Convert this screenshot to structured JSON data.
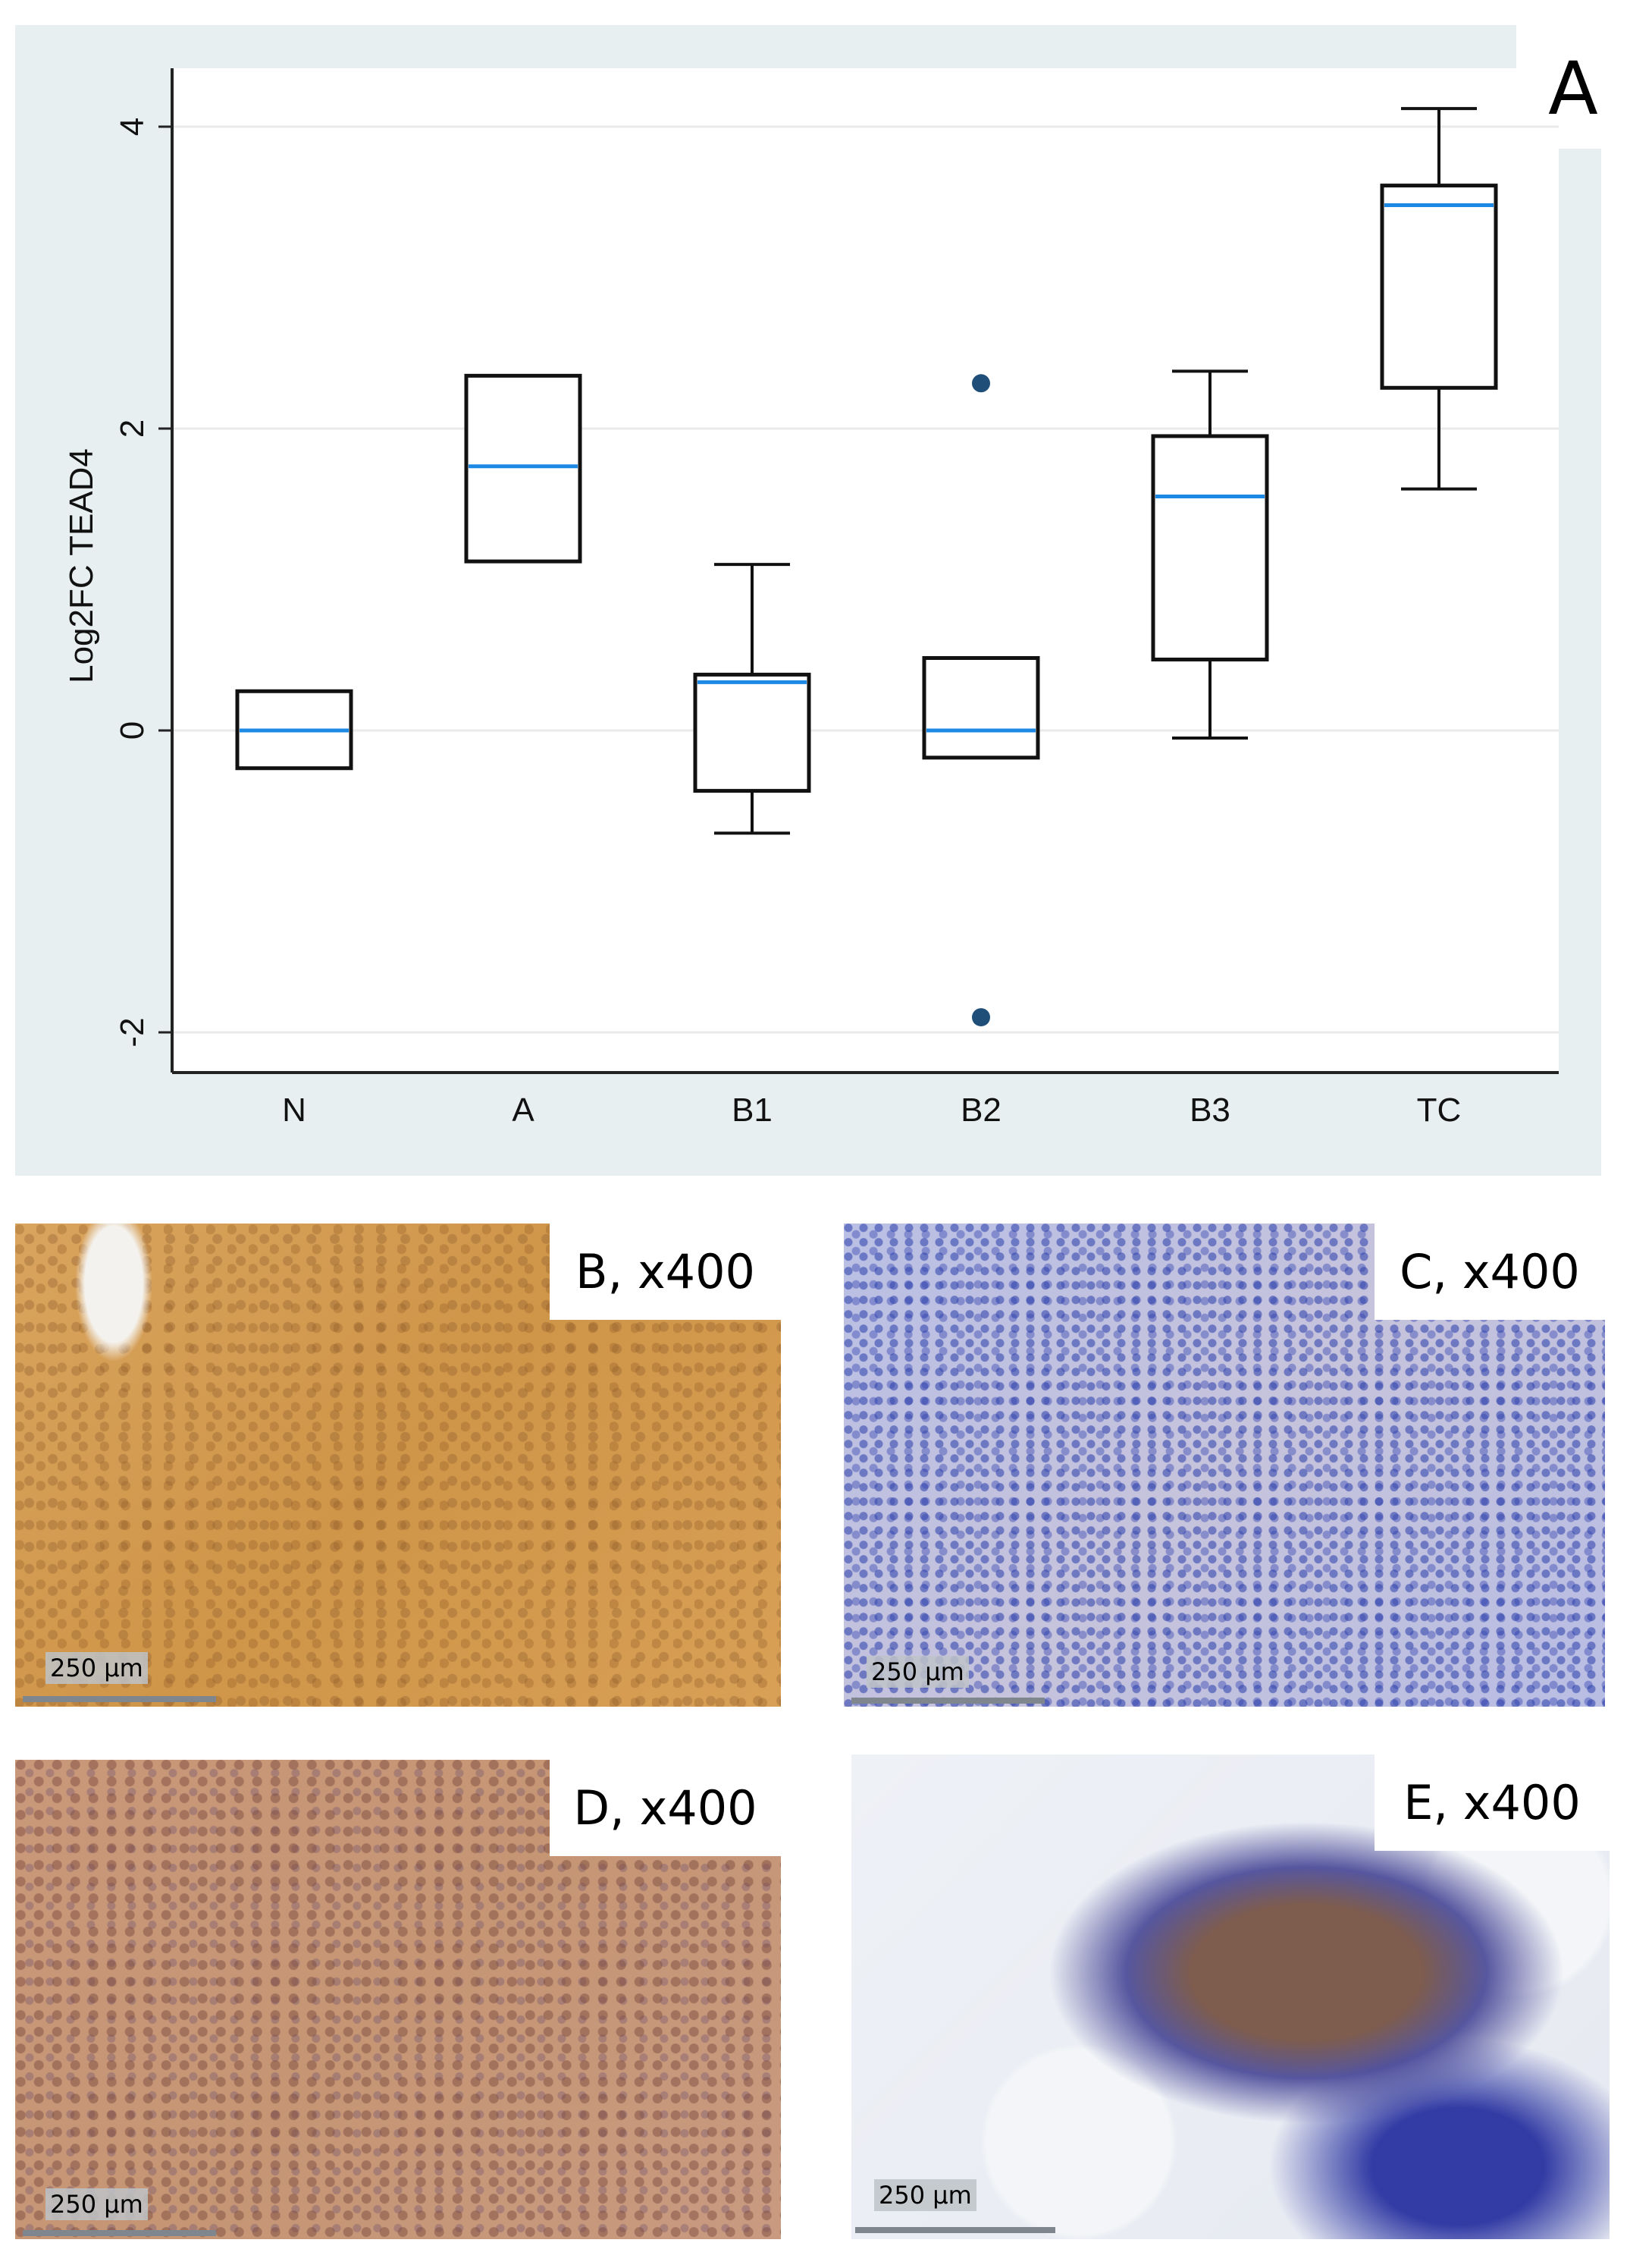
{
  "figure": {
    "panel_a_letter": "A",
    "panels": [
      {
        "id": "B",
        "label": "B, x400",
        "scale_text": "250 µm",
        "stain": "strong brown"
      },
      {
        "id": "C",
        "label": "C, x400",
        "scale_text": "250 µm",
        "stain": "blue (negative)"
      },
      {
        "id": "D",
        "label": "D, x400",
        "scale_text": "250 µm",
        "stain": "brown-purple"
      },
      {
        "id": "E",
        "label": "E, x400",
        "scale_text": "250 µm",
        "stain": "mixed brown/blue with adipose"
      }
    ]
  },
  "colors": {
    "median": "#1e88e5",
    "outlier": "#1f4e79",
    "box": "#111111",
    "grid": "#eaeaea",
    "background": "#e8eff1"
  },
  "chart_data": {
    "type": "box",
    "title": "",
    "xlabel": "",
    "ylabel": "Log2FC  TEAD4",
    "ylim": [
      -2.5,
      4.4
    ],
    "yticks": [
      -2,
      0,
      2,
      4
    ],
    "ytick_labels": [
      "-2",
      "0",
      "2",
      "4"
    ],
    "grid": true,
    "categories": [
      "N",
      "A",
      "B1",
      "B2",
      "B3",
      "TC"
    ],
    "series": [
      {
        "name": "N",
        "whisker_low": -0.25,
        "q1": -0.25,
        "median": 0.0,
        "q3": 0.26,
        "whisker_high": 0.26,
        "outliers": []
      },
      {
        "name": "A",
        "whisker_low": 1.12,
        "q1": 1.12,
        "median": 1.75,
        "q3": 2.35,
        "whisker_high": 2.35,
        "outliers": []
      },
      {
        "name": "B1",
        "whisker_low": -0.68,
        "q1": -0.4,
        "median": 0.32,
        "q3": 0.37,
        "whisker_high": 1.1,
        "outliers": []
      },
      {
        "name": "B2",
        "whisker_low": -0.18,
        "q1": -0.18,
        "median": 0.0,
        "q3": 0.48,
        "whisker_high": 0.48,
        "outliers": [
          2.3,
          -1.9
        ]
      },
      {
        "name": "B3",
        "whisker_low": -0.05,
        "q1": 0.47,
        "median": 1.55,
        "q3": 1.95,
        "whisker_high": 2.38,
        "outliers": []
      },
      {
        "name": "TC",
        "whisker_low": 1.6,
        "q1": 2.27,
        "median": 3.48,
        "q3": 3.61,
        "whisker_high": 4.12,
        "outliers": []
      }
    ]
  }
}
